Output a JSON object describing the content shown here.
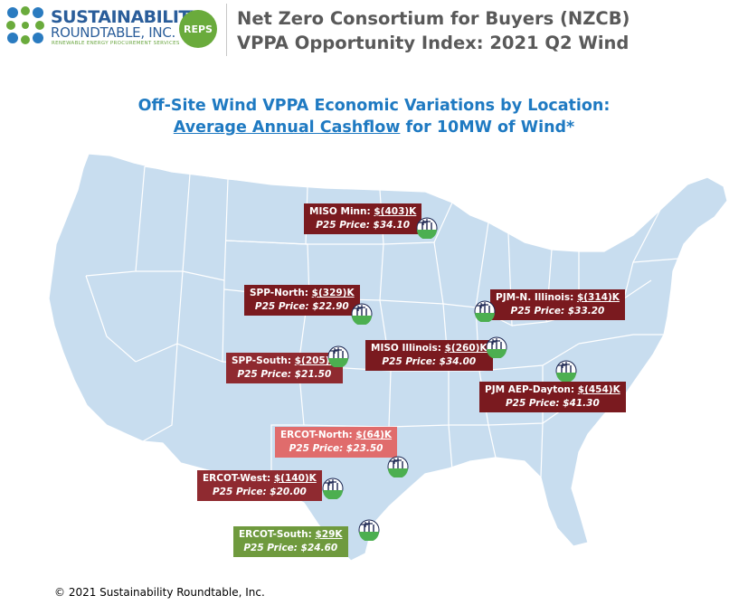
{
  "logo": {
    "line1": "SUSTAINABILITY",
    "line2": "ROUNDTABLE, INC.",
    "line3": "RENEWABLE ENERGY PROCUREMENT SERVICES",
    "badge": "REPS"
  },
  "header": {
    "line1": "Net Zero Consortium for Buyers (NZCB)",
    "line2": "VPPA Opportunity Index: 2021 Q2 Wind"
  },
  "subtitle": {
    "line1": "Off-Site Wind VPPA Economic Variations by Location:",
    "line2_underlined": "Average Annual Cashflow",
    "line2_rest": " for 10MW of Wind*"
  },
  "colors": {
    "map_fill": "#c8ddef",
    "state_border": "#ffffff",
    "dark_red": "#7a1a1f",
    "light_red": "#e06c6c",
    "green": "#6f9a3e",
    "title_blue": "#1f7ac2"
  },
  "locations": [
    {
      "id": "miso-minn",
      "name": "MISO Minn: ",
      "value": "$(403)K",
      "price": "P25 Price: $34.10",
      "tone": "dark"
    },
    {
      "id": "spp-north",
      "name": "SPP-North: ",
      "value": "$(329)K",
      "price": "P25 Price: $22.90",
      "tone": "dark"
    },
    {
      "id": "pjm-n-illinois",
      "name": "PJM-N. Illinois: ",
      "value": "$(314)K",
      "price": "P25 Price: $33.20",
      "tone": "dark"
    },
    {
      "id": "spp-south",
      "name": "SPP-South: ",
      "value": "$(205)K",
      "price": "P25 Price: $21.50",
      "tone": "mid"
    },
    {
      "id": "miso-illinois",
      "name": "MISO Illinois: ",
      "value": "$(260)K",
      "price": "P25 Price: $34.00",
      "tone": "dark"
    },
    {
      "id": "pjm-aep-dayton",
      "name": "PJM AEP-Dayton: ",
      "value": "$(454)K",
      "price": "P25 Price: $41.30",
      "tone": "dark"
    },
    {
      "id": "ercot-north",
      "name": "ERCOT-North: ",
      "value": "$(64)K",
      "price": "P25 Price: $23.50",
      "tone": "light"
    },
    {
      "id": "ercot-west",
      "name": "ERCOT-West: ",
      "value": "$(140)K",
      "price": "P25 Price: $20.00",
      "tone": "mid"
    },
    {
      "id": "ercot-south",
      "name": "ERCOT-South: ",
      "value": "$29K",
      "price": "P25 Price: $24.60",
      "tone": "green"
    }
  ],
  "icons": [
    "wind-turbine-icon",
    "leaf-logo-icon"
  ],
  "footer": {
    "copyright": "© 2021 Sustainability Roundtable, Inc."
  }
}
